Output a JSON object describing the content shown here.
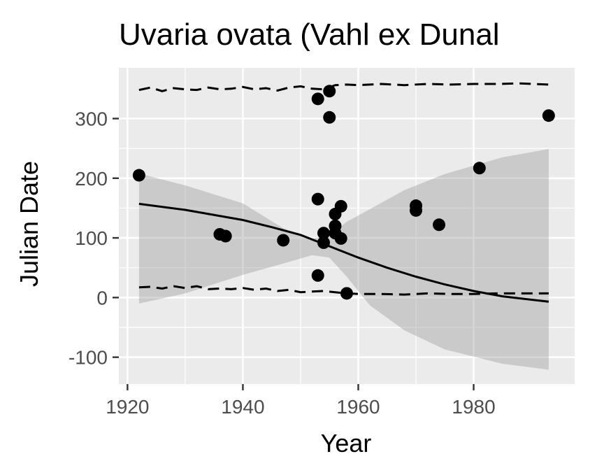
{
  "chart_data": {
    "type": "scatter",
    "title": "Uvaria ovata (Vahl ex Dunal",
    "xlabel": "Year",
    "ylabel": "Julian Date",
    "xlim": [
      1918.5,
      1997.5
    ],
    "ylim": [
      -145,
      385
    ],
    "x_ticks": [
      1920,
      1940,
      1960,
      1980
    ],
    "x_tick_labels": [
      "1920",
      "1940",
      "1960",
      "1980"
    ],
    "y_ticks": [
      -100,
      0,
      100,
      200,
      300
    ],
    "y_tick_labels": [
      "-100",
      "0",
      "100",
      "200",
      "300"
    ],
    "grid": true,
    "colors": {
      "panel": "#ebebeb",
      "grid": "#ffffff",
      "points": "#000000",
      "ribbon": "#c8c8c8",
      "tick_text": "#4d4d4d"
    },
    "points": [
      {
        "x": 1922,
        "y": 205
      },
      {
        "x": 1936,
        "y": 106
      },
      {
        "x": 1937,
        "y": 103
      },
      {
        "x": 1947,
        "y": 96
      },
      {
        "x": 1953,
        "y": 333
      },
      {
        "x": 1953,
        "y": 165
      },
      {
        "x": 1953,
        "y": 37
      },
      {
        "x": 1954,
        "y": 108
      },
      {
        "x": 1954,
        "y": 92
      },
      {
        "x": 1955,
        "y": 346
      },
      {
        "x": 1955,
        "y": 302
      },
      {
        "x": 1956,
        "y": 140
      },
      {
        "x": 1956,
        "y": 120
      },
      {
        "x": 1956,
        "y": 108
      },
      {
        "x": 1957,
        "y": 153
      },
      {
        "x": 1957,
        "y": 99
      },
      {
        "x": 1958,
        "y": 7
      },
      {
        "x": 1970,
        "y": 154
      },
      {
        "x": 1970,
        "y": 146
      },
      {
        "x": 1974,
        "y": 122
      },
      {
        "x": 1981,
        "y": 217
      },
      {
        "x": 1993,
        "y": 305
      }
    ],
    "fit_line": {
      "x": [
        1922,
        1930,
        1940,
        1945,
        1950,
        1955,
        1960,
        1965,
        1970,
        1975,
        1980,
        1985,
        1993
      ],
      "y": [
        157,
        147,
        130,
        118,
        105,
        86,
        67,
        50,
        35,
        22,
        11,
        2,
        -7
      ]
    },
    "confidence_band": {
      "x": [
        1922,
        1930,
        1940,
        1947,
        1952,
        1955,
        1958,
        1962,
        1968,
        1975,
        1985,
        1993
      ],
      "upper": [
        208,
        188,
        158,
        116,
        99,
        104,
        127,
        148,
        180,
        207,
        235,
        249
      ],
      "lower": [
        -10,
        7,
        38,
        57,
        71,
        67,
        35,
        -13,
        -55,
        -87,
        -111,
        -121
      ]
    },
    "upper_dashed": {
      "x": [
        1922,
        1924,
        1926,
        1928,
        1930,
        1932,
        1934,
        1936,
        1938,
        1940,
        1942,
        1944,
        1946,
        1948,
        1950,
        1952,
        1954,
        1956,
        1958,
        1960,
        1964,
        1968,
        1972,
        1976,
        1980,
        1984,
        1988,
        1993
      ],
      "y": [
        348,
        352,
        346,
        351,
        349,
        348,
        352,
        349,
        350,
        353,
        349,
        351,
        347,
        352,
        354,
        350,
        349,
        356,
        357,
        356,
        358,
        356,
        358,
        357,
        358,
        358,
        359,
        357
      ]
    },
    "lower_dashed": {
      "x": [
        1922,
        1924,
        1926,
        1928,
        1930,
        1932,
        1934,
        1936,
        1938,
        1940,
        1942,
        1944,
        1946,
        1948,
        1950,
        1952,
        1954,
        1956,
        1958,
        1960,
        1964,
        1968,
        1972,
        1976,
        1980,
        1984,
        1988,
        1993
      ],
      "y": [
        17,
        18,
        15,
        19,
        16,
        19,
        14,
        15,
        14,
        16,
        13,
        15,
        11,
        13,
        9,
        10,
        11,
        9,
        7,
        6,
        6,
        5,
        7,
        6,
        6,
        7,
        7,
        7
      ]
    }
  }
}
